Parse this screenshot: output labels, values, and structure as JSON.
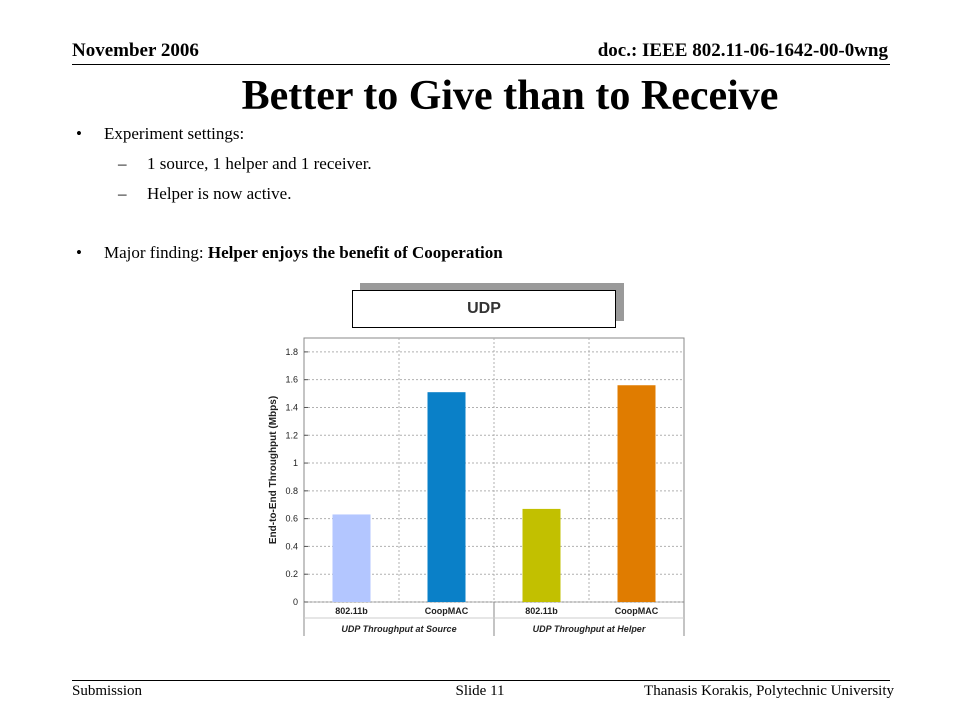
{
  "header": {
    "date": "November 2006",
    "doc": "doc.: IEEE 802.11-06-1642-00-0wng"
  },
  "title": "Better to Give than to Receive",
  "bullets": [
    {
      "text": "Experiment settings:"
    },
    {
      "text": "Major finding: ",
      "bold": "Helper enjoys the benefit of Cooperation"
    }
  ],
  "sub_bullets": [
    "1 source, 1 helper and 1 receiver.",
    "Helper is now active."
  ],
  "bullet_char": "•",
  "dash_char": "–",
  "callout": "UDP",
  "footer": {
    "submission": "Submission",
    "slide": "Slide 11",
    "author": "Thanasis Korakis, Polytechnic University"
  },
  "chart_data": {
    "type": "bar",
    "categories": [
      "802.11b",
      "CoopMAC",
      "802.11b",
      "CoopMAC"
    ],
    "values": [
      0.63,
      1.51,
      0.67,
      1.56
    ],
    "colors": [
      "#b3c6ff",
      "#0a80c8",
      "#c2c000",
      "#e07c00"
    ],
    "groups": [
      "UDP Throughput at Source",
      "UDP Throughput at Helper"
    ],
    "ylabel": "End-to-End Throughput (Mbps)",
    "ylim": [
      0,
      1.9
    ],
    "yticks": [
      0,
      0.2,
      0.4,
      0.6,
      0.8,
      1,
      1.2,
      1.4,
      1.6,
      1.8
    ],
    "grid": true
  }
}
